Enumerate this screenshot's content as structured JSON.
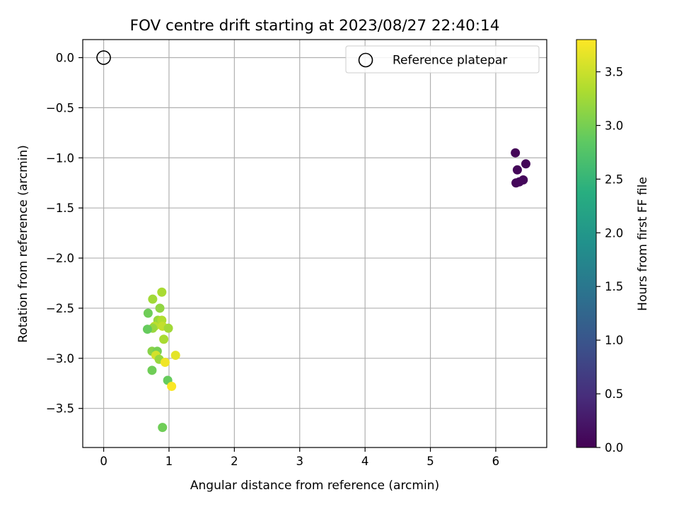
{
  "chart_data": {
    "type": "scatter",
    "title": "FOV centre drift starting at 2023/08/27 22:40:14",
    "xlabel": "Angular distance from reference (arcmin)",
    "ylabel": "Rotation from reference (arcmin)",
    "xlim": [
      -0.32,
      6.78
    ],
    "ylim": [
      -3.89,
      0.18
    ],
    "xticks": [
      0,
      1,
      2,
      3,
      4,
      5,
      6
    ],
    "yticks": [
      0.0,
      -0.5,
      -1.0,
      -1.5,
      -2.0,
      -2.5,
      -3.0,
      -3.5
    ],
    "ytick_labels": [
      "0.0",
      "−0.5",
      "−1.0",
      "−1.5",
      "−2.0",
      "−2.5",
      "−3.0",
      "−3.5"
    ],
    "grid": true,
    "legend": {
      "placement": "top-right",
      "entries": [
        {
          "label": "Reference platepar",
          "marker": "open-circle"
        }
      ]
    },
    "reference": {
      "x": 0.0,
      "y": 0.0
    },
    "colorbar": {
      "label": "Hours from first FF file",
      "colormap": "viridis",
      "range": [
        0.0,
        3.8
      ],
      "ticks": [
        0.0,
        0.5,
        1.0,
        1.5,
        2.0,
        2.5,
        3.0,
        3.5
      ],
      "tick_labels": [
        "0.0",
        "0.5",
        "1.0",
        "1.5",
        "2.0",
        "2.5",
        "3.0",
        "3.5"
      ]
    },
    "points": [
      {
        "x": 6.3,
        "y": -0.95,
        "hours": 0.05
      },
      {
        "x": 6.46,
        "y": -1.06,
        "hours": 0.05
      },
      {
        "x": 6.33,
        "y": -1.12,
        "hours": 0.06
      },
      {
        "x": 6.42,
        "y": -1.22,
        "hours": 0.07
      },
      {
        "x": 6.31,
        "y": -1.25,
        "hours": 0.06
      },
      {
        "x": 6.36,
        "y": -1.24,
        "hours": 0.08
      },
      {
        "x": 0.89,
        "y": -2.34,
        "hours": 3.3
      },
      {
        "x": 0.75,
        "y": -2.41,
        "hours": 3.25
      },
      {
        "x": 0.86,
        "y": -2.5,
        "hours": 3.15
      },
      {
        "x": 0.68,
        "y": -2.55,
        "hours": 2.95
      },
      {
        "x": 0.83,
        "y": -2.62,
        "hours": 3.2
      },
      {
        "x": 0.89,
        "y": -2.62,
        "hours": 3.35
      },
      {
        "x": 0.78,
        "y": -2.68,
        "hours": 3.4
      },
      {
        "x": 0.75,
        "y": -2.7,
        "hours": 3.2
      },
      {
        "x": 0.67,
        "y": -2.71,
        "hours": 2.9
      },
      {
        "x": 0.9,
        "y": -2.68,
        "hours": 3.45
      },
      {
        "x": 0.99,
        "y": -2.7,
        "hours": 3.25
      },
      {
        "x": 0.92,
        "y": -2.81,
        "hours": 3.3
      },
      {
        "x": 0.74,
        "y": -2.93,
        "hours": 3.1
      },
      {
        "x": 0.82,
        "y": -2.93,
        "hours": 3.0
      },
      {
        "x": 0.8,
        "y": -2.97,
        "hours": 3.55
      },
      {
        "x": 0.85,
        "y": -3.01,
        "hours": 3.2
      },
      {
        "x": 1.1,
        "y": -2.97,
        "hours": 3.65
      },
      {
        "x": 0.94,
        "y": -3.04,
        "hours": 3.72
      },
      {
        "x": 0.74,
        "y": -3.12,
        "hours": 2.95
      },
      {
        "x": 0.98,
        "y": -3.22,
        "hours": 2.9
      },
      {
        "x": 1.04,
        "y": -3.28,
        "hours": 3.78
      },
      {
        "x": 0.9,
        "y": -3.69,
        "hours": 2.95
      }
    ]
  }
}
